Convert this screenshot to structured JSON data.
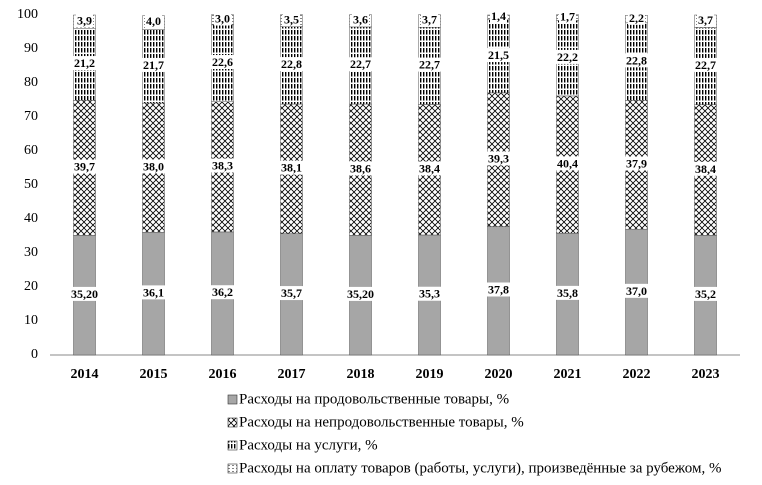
{
  "chart_data": {
    "type": "stacked-bar",
    "categories": [
      "2014",
      "2015",
      "2016",
      "2017",
      "2018",
      "2019",
      "2020",
      "2021",
      "2022",
      "2023"
    ],
    "series": [
      {
        "name": "Расходы на продовольственные товары, %",
        "color": "#a6a6a6",
        "pattern": "solid",
        "values": [
          35.2,
          36.1,
          36.2,
          35.7,
          35.2,
          35.3,
          37.8,
          35.8,
          37.0,
          35.2
        ],
        "value_labels": [
          "35,20",
          "36,1",
          "36,2",
          "35,7",
          "35,20",
          "35,3",
          "37,8",
          "35,8",
          "37,0",
          "35,2"
        ]
      },
      {
        "name": "Расходы на непродовольственные товары, %",
        "color": "#000000",
        "pattern": "crosshatch",
        "values": [
          39.7,
          38.0,
          38.3,
          38.1,
          38.6,
          38.4,
          39.3,
          40.4,
          37.9,
          38.4
        ],
        "value_labels": [
          "39,7",
          "38,0",
          "38,3",
          "38,1",
          "38,6",
          "38,4",
          "39,3",
          "40,4",
          "37,9",
          "38,4"
        ]
      },
      {
        "name": "Расходы на услуги, %",
        "color": "#000000",
        "pattern": "vertical",
        "values": [
          21.2,
          21.7,
          22.6,
          22.8,
          22.7,
          22.7,
          21.5,
          22.2,
          22.8,
          22.7
        ],
        "value_labels": [
          "21,2",
          "21,7",
          "22,6",
          "22,8",
          "22,7",
          "22,7",
          "21,5",
          "22,2",
          "22,8",
          "22,7"
        ]
      },
      {
        "name": "Расходы на оплату товаров (работы, услуги), произведённые за рубежом,  %",
        "color": "#000000",
        "pattern": "horizontal",
        "values": [
          3.9,
          4.0,
          3.0,
          3.5,
          3.6,
          3.7,
          1.4,
          1.7,
          2.2,
          3.7
        ],
        "value_labels": [
          "3,9",
          "4,0",
          "3,0",
          "3,5",
          "3,6",
          "3,7",
          "1,4",
          "1,7",
          "2,2",
          "3,7"
        ]
      }
    ],
    "ylim": [
      0,
      100
    ],
    "yticks": [
      0,
      10,
      20,
      30,
      40,
      50,
      60,
      70,
      80,
      90,
      100
    ],
    "grid": false
  }
}
